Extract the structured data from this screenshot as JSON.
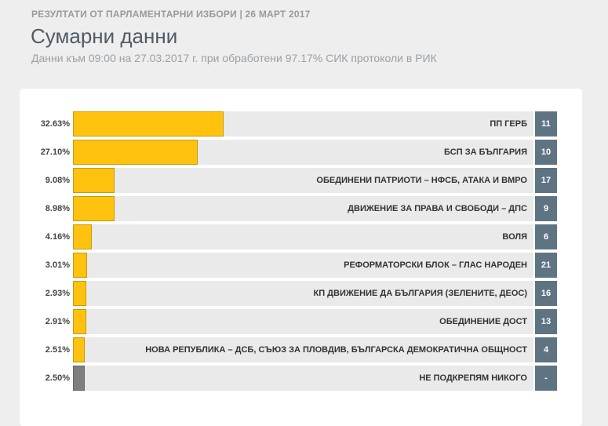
{
  "header": {
    "supertitle": "РЕЗУЛТАТИ ОТ ПАРЛАМЕНТАРНИ ИЗБОРИ | 26 МАРТ 2017",
    "title": "Сумарни данни",
    "subtitle": "Данни към 09:00 на 27.03.2017 г. при обработени 97.17% СИК протоколи в РИК"
  },
  "colors": {
    "bar": "#ffc20e",
    "none_bar": "#7f7f7f",
    "seats_bg": "#5f7482",
    "track": "#eaeaea"
  },
  "chart_data": {
    "type": "bar",
    "orientation": "horizontal",
    "title": "",
    "xlim": [
      0,
      100
    ],
    "categories": [
      "ПП ГЕРБ",
      "БСП ЗА БЪЛГАРИЯ",
      "ОБЕДИНЕНИ ПАТРИОТИ – НФСБ, АТАКА И ВМРО",
      "ДВИЖЕНИЕ ЗА ПРАВА И СВОБОДИ – ДПС",
      "ВОЛЯ",
      "РЕФОРМАТОРСКИ БЛОК – ГЛАС НАРОДЕН",
      "КП ДВИЖЕНИЕ ДА БЪЛГАРИЯ (ЗЕЛЕНИТЕ, ДЕОС)",
      "ОБЕДИНЕНИЕ ДОСТ",
      "НОВА РЕПУБЛИКА – ДСБ, СЪЮЗ ЗА ПЛОВДИВ, БЪЛГАРСКА ДЕМОКРАТИЧНА ОБЩНОСТ",
      "НЕ ПОДКРЕПЯМ НИКОГО"
    ],
    "values": [
      32.63,
      27.1,
      9.08,
      8.98,
      4.16,
      3.01,
      2.93,
      2.91,
      2.51,
      2.5
    ],
    "value_labels": [
      "32.63%",
      "27.10%",
      "9.08%",
      "8.98%",
      "4.16%",
      "3.01%",
      "2.93%",
      "2.91%",
      "2.51%",
      "2.50%"
    ],
    "seats": [
      "11",
      "10",
      "17",
      "9",
      "6",
      "21",
      "16",
      "13",
      "4",
      "-"
    ]
  }
}
